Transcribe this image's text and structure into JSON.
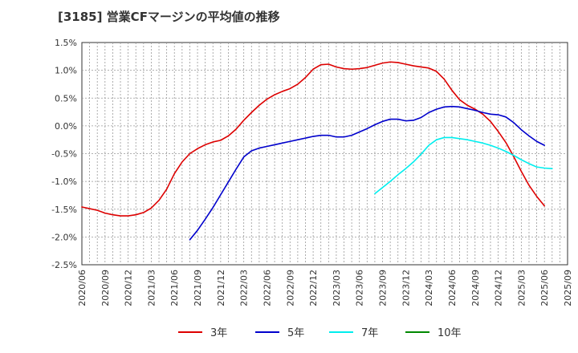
{
  "chart_data": {
    "type": "line",
    "title": "[3185]  営業CFマージンの平均値の推移",
    "xlabel": "",
    "ylabel": "",
    "ylim": [
      -2.5,
      1.5
    ],
    "yticks": [
      1.5,
      1.0,
      0.5,
      0.0,
      -0.5,
      -1.0,
      -1.5,
      -2.0,
      -2.5
    ],
    "ytick_labels": [
      "1.5%",
      "1.0%",
      "0.5%",
      "0.0%",
      "-0.5%",
      "-1.0%",
      "-1.5%",
      "-2.0%",
      "-2.5%"
    ],
    "x_start": "2020/06",
    "xticks": [
      "2020/06",
      "2020/09",
      "2020/12",
      "2021/03",
      "2021/06",
      "2021/09",
      "2021/12",
      "2022/03",
      "2022/06",
      "2022/09",
      "2022/12",
      "2023/03",
      "2023/06",
      "2023/09",
      "2023/12",
      "2024/03",
      "2024/06",
      "2024/09",
      "2024/12",
      "2025/03",
      "2025/06",
      "2025/09"
    ],
    "grid": true,
    "legend_position": "bottom",
    "series": [
      {
        "name": "3年",
        "color": "#dd0000",
        "start_index": 0,
        "values": [
          -1.46,
          -1.49,
          -1.52,
          -1.57,
          -1.6,
          -1.62,
          -1.62,
          -1.6,
          -1.56,
          -1.48,
          -1.34,
          -1.14,
          -0.86,
          -0.65,
          -0.5,
          -0.41,
          -0.34,
          -0.29,
          -0.26,
          -0.18,
          -0.06,
          0.1,
          0.24,
          0.37,
          0.48,
          0.56,
          0.62,
          0.67,
          0.75,
          0.87,
          1.02,
          1.1,
          1.11,
          1.06,
          1.03,
          1.02,
          1.03,
          1.05,
          1.09,
          1.13,
          1.15,
          1.14,
          1.11,
          1.08,
          1.06,
          1.04,
          0.98,
          0.84,
          0.64,
          0.47,
          0.37,
          0.3,
          0.21,
          0.08,
          -0.1,
          -0.3,
          -0.55,
          -0.82,
          -1.07,
          -1.27,
          -1.44
        ]
      },
      {
        "name": "5年",
        "color": "#0000cc",
        "start_index": 14,
        "values": [
          -2.05,
          -1.88,
          -1.68,
          -1.47,
          -1.24,
          -1.01,
          -0.78,
          -0.56,
          -0.45,
          -0.4,
          -0.37,
          -0.34,
          -0.31,
          -0.28,
          -0.25,
          -0.22,
          -0.19,
          -0.17,
          -0.17,
          -0.2,
          -0.2,
          -0.17,
          -0.11,
          -0.05,
          0.02,
          0.08,
          0.12,
          0.12,
          0.09,
          0.1,
          0.15,
          0.24,
          0.3,
          0.34,
          0.35,
          0.34,
          0.31,
          0.28,
          0.24,
          0.21,
          0.2,
          0.16,
          0.06,
          -0.07,
          -0.18,
          -0.28,
          -0.35
        ]
      },
      {
        "name": "7年",
        "color": "#00eeee",
        "start_index": 38,
        "values": [
          -1.22,
          -1.11,
          -1.0,
          -0.88,
          -0.77,
          -0.65,
          -0.51,
          -0.35,
          -0.25,
          -0.21,
          -0.21,
          -0.23,
          -0.25,
          -0.28,
          -0.31,
          -0.35,
          -0.4,
          -0.46,
          -0.53,
          -0.61,
          -0.68,
          -0.74,
          -0.76,
          -0.77
        ]
      },
      {
        "name": "10年",
        "color": "#008800",
        "start_index": 0,
        "values": []
      }
    ]
  }
}
